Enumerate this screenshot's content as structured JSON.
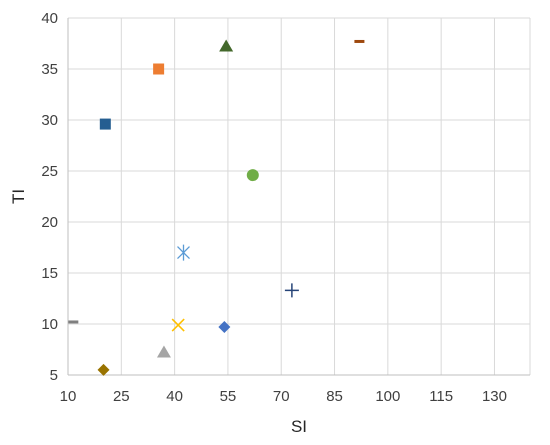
{
  "chart_data": {
    "type": "scatter",
    "title": "",
    "xlabel": "SI",
    "ylabel": "TI",
    "xlim": [
      10,
      140
    ],
    "ylim": [
      5,
      40
    ],
    "xticks": [
      10,
      25,
      40,
      55,
      70,
      85,
      100,
      115,
      130
    ],
    "yticks": [
      5,
      10,
      15,
      20,
      25,
      30,
      35,
      40
    ],
    "grid": true,
    "legend": "none",
    "points": [
      {
        "x": 20.5,
        "y": 29.6,
        "marker": "square",
        "color": "#255e91"
      },
      {
        "x": 35.5,
        "y": 35.0,
        "marker": "square",
        "color": "#ed7d31"
      },
      {
        "x": 54.5,
        "y": 37.2,
        "marker": "triangle",
        "color": "#43682b"
      },
      {
        "x": 92.0,
        "y": 37.7,
        "marker": "dash",
        "color": "#9e480e"
      },
      {
        "x": 62.0,
        "y": 24.6,
        "marker": "circle",
        "color": "#70ad47"
      },
      {
        "x": 42.5,
        "y": 17.0,
        "marker": "asterisk",
        "color": "#5b9bd5"
      },
      {
        "x": 73.0,
        "y": 13.3,
        "marker": "plus",
        "color": "#264478"
      },
      {
        "x": 11.5,
        "y": 10.2,
        "marker": "dash",
        "color": "#7f7f7f"
      },
      {
        "x": 41.0,
        "y": 9.9,
        "marker": "x",
        "color": "#ffc000"
      },
      {
        "x": 54.0,
        "y": 9.7,
        "marker": "diamond",
        "color": "#4472c4"
      },
      {
        "x": 37.0,
        "y": 7.2,
        "marker": "triangle",
        "color": "#a5a5a5"
      },
      {
        "x": 20.0,
        "y": 5.5,
        "marker": "diamond",
        "color": "#997300"
      }
    ]
  }
}
